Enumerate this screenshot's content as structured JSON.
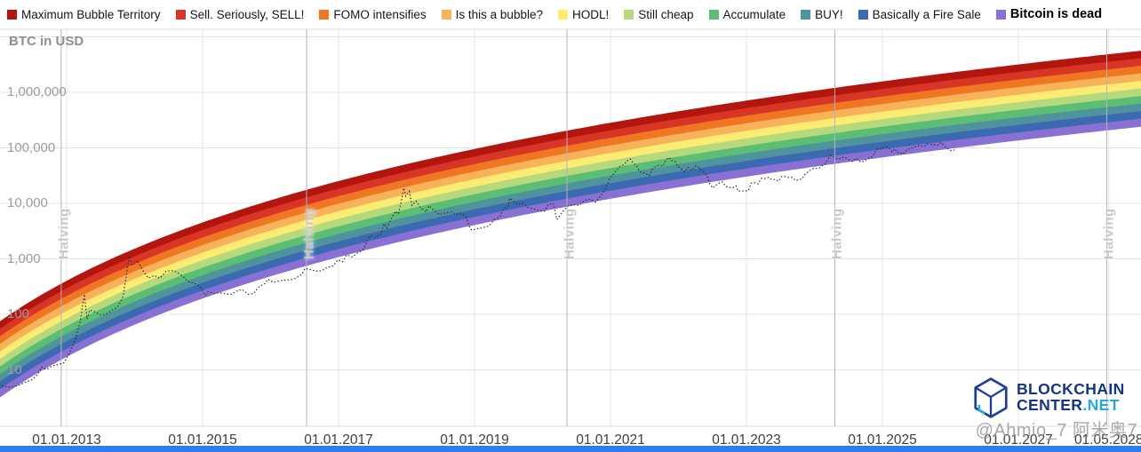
{
  "branding": {
    "word1": "BLOCKCHAIN",
    "word2": "CENTER",
    "word2_suffix": ".NET"
  },
  "watermark": "@Ahmio_7 阿米奥7",
  "chart_data": {
    "type": "line",
    "ylabel": "BTC in USD",
    "y_scale": "log10",
    "grid": true,
    "legend_position": "top",
    "y_ticks": [
      {
        "label": "1,000,000",
        "log10": 6
      },
      {
        "label": "100,000",
        "log10": 5
      },
      {
        "label": "10,000",
        "log10": 4
      },
      {
        "label": "1,000",
        "log10": 3
      },
      {
        "label": "100",
        "log10": 2
      },
      {
        "label": "10",
        "log10": 1
      }
    ],
    "y_grid_logs": [
      1,
      2,
      3,
      4,
      5,
      6,
      7
    ],
    "x_ticks": [
      {
        "label": "01.01.2013",
        "year": 2013
      },
      {
        "label": "01.01.2015",
        "year": 2015
      },
      {
        "label": "01.01.2017",
        "year": 2017
      },
      {
        "label": "01.01.2019",
        "year": 2019
      },
      {
        "label": "01.01.2021",
        "year": 2021
      },
      {
        "label": "01.01.2023",
        "year": 2023
      },
      {
        "label": "01.01.2025",
        "year": 2025
      },
      {
        "label": "01.01.2027",
        "year": 2027
      },
      {
        "label": "01.05.2028",
        "year": 2028.33
      }
    ],
    "halvings": {
      "label": "Halving",
      "years": [
        2012.92,
        2016.53,
        2020.36,
        2024.3,
        2028.3
      ]
    },
    "rainbow": {
      "note": "log10(USD) = a * ln(days since 2009-01-03) + b; 10 stacked bands",
      "a": 2.59,
      "b": -16.95,
      "band_log10_width": 0.136,
      "bands": [
        {
          "label": "Maximum Bubble Territory",
          "color": "#b3150f"
        },
        {
          "label": "Sell. Seriously, SELL!",
          "color": "#d93526"
        },
        {
          "label": "FOMO intensifies",
          "color": "#ef7622"
        },
        {
          "label": "Is this a bubble?",
          "color": "#f7b25a"
        },
        {
          "label": "HODL!",
          "color": "#fdec74"
        },
        {
          "label": "Still cheap",
          "color": "#b6d97e"
        },
        {
          "label": "Accumulate",
          "color": "#5cbd74"
        },
        {
          "label": "BUY!",
          "color": "#4f939c"
        },
        {
          "label": "Basically a Fire Sale",
          "color": "#3b69b2"
        },
        {
          "label": "Bitcoin is dead",
          "color": "#8970d3",
          "emphasis": true
        }
      ]
    },
    "price_series_units": [
      "year",
      "usd"
    ],
    "price_series": [
      [
        2012.0,
        5.2
      ],
      [
        2012.08,
        5.0
      ],
      [
        2012.17,
        4.9
      ],
      [
        2012.25,
        5.1
      ],
      [
        2012.33,
        5.5
      ],
      [
        2012.42,
        6.2
      ],
      [
        2012.5,
        6.7
      ],
      [
        2012.58,
        8.5
      ],
      [
        2012.63,
        11.2
      ],
      [
        2012.7,
        10.2
      ],
      [
        2012.79,
        11.8
      ],
      [
        2012.88,
        12.5
      ],
      [
        2012.96,
        13.4
      ],
      [
        2013.04,
        20
      ],
      [
        2013.12,
        33
      ],
      [
        2013.2,
        75
      ],
      [
        2013.26,
        230
      ],
      [
        2013.3,
        83
      ],
      [
        2013.34,
        120
      ],
      [
        2013.42,
        110
      ],
      [
        2013.5,
        97
      ],
      [
        2013.58,
        102
      ],
      [
        2013.67,
        120
      ],
      [
        2013.75,
        135
      ],
      [
        2013.83,
        210
      ],
      [
        2013.88,
        520
      ],
      [
        2013.92,
        1120
      ],
      [
        2013.96,
        760
      ],
      [
        2014.0,
        810
      ],
      [
        2014.04,
        930
      ],
      [
        2014.12,
        620
      ],
      [
        2014.2,
        450
      ],
      [
        2014.29,
        500
      ],
      [
        2014.37,
        445
      ],
      [
        2014.46,
        590
      ],
      [
        2014.54,
        620
      ],
      [
        2014.62,
        580
      ],
      [
        2014.71,
        480
      ],
      [
        2014.79,
        390
      ],
      [
        2014.88,
        360
      ],
      [
        2014.96,
        320
      ],
      [
        2015.04,
        218
      ],
      [
        2015.08,
        255
      ],
      [
        2015.17,
        240
      ],
      [
        2015.25,
        245
      ],
      [
        2015.33,
        235
      ],
      [
        2015.42,
        230
      ],
      [
        2015.5,
        262
      ],
      [
        2015.58,
        282
      ],
      [
        2015.67,
        230
      ],
      [
        2015.75,
        237
      ],
      [
        2015.83,
        315
      ],
      [
        2015.92,
        362
      ],
      [
        2015.96,
        430
      ],
      [
        2016.04,
        378
      ],
      [
        2016.12,
        398
      ],
      [
        2016.21,
        416
      ],
      [
        2016.29,
        418
      ],
      [
        2016.37,
        448
      ],
      [
        2016.46,
        530
      ],
      [
        2016.51,
        675
      ],
      [
        2016.58,
        640
      ],
      [
        2016.67,
        600
      ],
      [
        2016.75,
        608
      ],
      [
        2016.83,
        700
      ],
      [
        2016.92,
        745
      ],
      [
        2016.99,
        960
      ],
      [
        2017.06,
        890
      ],
      [
        2017.12,
        1180
      ],
      [
        2017.2,
        1080
      ],
      [
        2017.28,
        1280
      ],
      [
        2017.37,
        1500
      ],
      [
        2017.43,
        2300
      ],
      [
        2017.48,
        2600
      ],
      [
        2017.54,
        2400
      ],
      [
        2017.62,
        2750
      ],
      [
        2017.67,
        4300
      ],
      [
        2017.71,
        3600
      ],
      [
        2017.79,
        5700
      ],
      [
        2017.84,
        7200
      ],
      [
        2017.88,
        6400
      ],
      [
        2017.92,
        10500
      ],
      [
        2017.96,
        19000
      ],
      [
        2017.99,
        13500
      ],
      [
        2018.04,
        16500
      ],
      [
        2018.08,
        9200
      ],
      [
        2018.14,
        11000
      ],
      [
        2018.21,
        8300
      ],
      [
        2018.29,
        7000
      ],
      [
        2018.33,
        9100
      ],
      [
        2018.4,
        7500
      ],
      [
        2018.48,
        6300
      ],
      [
        2018.56,
        6600
      ],
      [
        2018.65,
        7000
      ],
      [
        2018.73,
        6350
      ],
      [
        2018.81,
        6500
      ],
      [
        2018.88,
        5600
      ],
      [
        2018.92,
        3900
      ],
      [
        2018.96,
        3300
      ],
      [
        2019.04,
        3500
      ],
      [
        2019.12,
        3650
      ],
      [
        2019.21,
        3900
      ],
      [
        2019.29,
        5100
      ],
      [
        2019.37,
        5600
      ],
      [
        2019.43,
        8000
      ],
      [
        2019.49,
        8600
      ],
      [
        2019.52,
        12400
      ],
      [
        2019.58,
        10800
      ],
      [
        2019.63,
        9600
      ],
      [
        2019.71,
        10200
      ],
      [
        2019.79,
        8400
      ],
      [
        2019.87,
        8000
      ],
      [
        2019.95,
        7300
      ],
      [
        2020.03,
        7300
      ],
      [
        2020.08,
        9400
      ],
      [
        2020.16,
        10100
      ],
      [
        2020.21,
        5100
      ],
      [
        2020.29,
        6900
      ],
      [
        2020.37,
        8900
      ],
      [
        2020.45,
        9500
      ],
      [
        2020.54,
        9200
      ],
      [
        2020.62,
        11300
      ],
      [
        2020.7,
        11800
      ],
      [
        2020.78,
        10500
      ],
      [
        2020.86,
        13800
      ],
      [
        2020.94,
        19200
      ],
      [
        2020.99,
        28900
      ],
      [
        2021.04,
        33500
      ],
      [
        2021.09,
        39600
      ],
      [
        2021.14,
        46500
      ],
      [
        2021.2,
        50000
      ],
      [
        2021.25,
        58800
      ],
      [
        2021.29,
        63200
      ],
      [
        2021.33,
        53500
      ],
      [
        2021.38,
        49000
      ],
      [
        2021.43,
        37000
      ],
      [
        2021.48,
        35800
      ],
      [
        2021.53,
        33600
      ],
      [
        2021.57,
        31600
      ],
      [
        2021.62,
        42200
      ],
      [
        2021.67,
        47100
      ],
      [
        2021.72,
        48800
      ],
      [
        2021.77,
        47200
      ],
      [
        2021.82,
        61300
      ],
      [
        2021.86,
        66900
      ],
      [
        2021.9,
        58700
      ],
      [
        2021.95,
        57200
      ],
      [
        2021.99,
        46300
      ],
      [
        2022.04,
        41500
      ],
      [
        2022.09,
        36900
      ],
      [
        2022.14,
        44400
      ],
      [
        2022.19,
        39400
      ],
      [
        2022.24,
        46800
      ],
      [
        2022.29,
        45500
      ],
      [
        2022.33,
        39700
      ],
      [
        2022.38,
        36000
      ],
      [
        2022.43,
        29800
      ],
      [
        2022.46,
        22500
      ],
      [
        2022.5,
        19000
      ],
      [
        2022.55,
        21200
      ],
      [
        2022.6,
        23300
      ],
      [
        2022.65,
        24400
      ],
      [
        2022.7,
        20100
      ],
      [
        2022.75,
        19400
      ],
      [
        2022.8,
        19100
      ],
      [
        2022.85,
        20500
      ],
      [
        2022.88,
        16500
      ],
      [
        2022.93,
        16800
      ],
      [
        2022.98,
        16600
      ],
      [
        2023.03,
        17200
      ],
      [
        2023.07,
        23100
      ],
      [
        2023.12,
        23500
      ],
      [
        2023.17,
        22400
      ],
      [
        2023.22,
        28300
      ],
      [
        2023.27,
        28000
      ],
      [
        2023.32,
        29300
      ],
      [
        2023.37,
        27000
      ],
      [
        2023.42,
        26900
      ],
      [
        2023.47,
        25100
      ],
      [
        2023.52,
        30500
      ],
      [
        2023.57,
        30300
      ],
      [
        2023.62,
        29200
      ],
      [
        2023.67,
        29200
      ],
      [
        2023.72,
        26000
      ],
      [
        2023.77,
        26600
      ],
      [
        2023.82,
        27700
      ],
      [
        2023.87,
        34500
      ],
      [
        2023.92,
        37700
      ],
      [
        2023.97,
        42300
      ],
      [
        2024.02,
        42600
      ],
      [
        2024.07,
        43100
      ],
      [
        2024.12,
        48200
      ],
      [
        2024.16,
        52000
      ],
      [
        2024.2,
        62500
      ],
      [
        2024.23,
        73100
      ],
      [
        2024.27,
        69400
      ],
      [
        2024.32,
        64000
      ],
      [
        2024.37,
        63800
      ],
      [
        2024.42,
        67500
      ],
      [
        2024.46,
        66200
      ],
      [
        2024.51,
        61000
      ],
      [
        2024.56,
        57000
      ],
      [
        2024.61,
        65000
      ],
      [
        2024.65,
        59400
      ],
      [
        2024.69,
        55000
      ],
      [
        2024.74,
        59000
      ],
      [
        2024.78,
        63200
      ],
      [
        2024.82,
        66600
      ],
      [
        2024.86,
        69000
      ],
      [
        2024.9,
        88700
      ],
      [
        2024.94,
        97500
      ],
      [
        2024.98,
        95800
      ],
      [
        2025.02,
        102100
      ],
      [
        2025.06,
        104800
      ],
      [
        2025.1,
        97700
      ],
      [
        2025.14,
        84400
      ],
      [
        2025.18,
        96100
      ],
      [
        2025.22,
        82600
      ],
      [
        2025.26,
        82500
      ],
      [
        2025.3,
        76300
      ],
      [
        2025.34,
        87500
      ],
      [
        2025.38,
        94200
      ],
      [
        2025.42,
        97000
      ],
      [
        2025.46,
        103700
      ],
      [
        2025.5,
        104600
      ],
      [
        2025.54,
        109600
      ],
      [
        2025.58,
        107200
      ],
      [
        2025.62,
        108300
      ],
      [
        2025.66,
        118000
      ],
      [
        2025.7,
        117500
      ],
      [
        2025.74,
        113300
      ],
      [
        2025.78,
        114700
      ],
      [
        2025.82,
        112400
      ],
      [
        2025.86,
        124400
      ],
      [
        2025.9,
        110100
      ],
      [
        2025.94,
        101000
      ],
      [
        2025.98,
        93400
      ],
      [
        2026.02,
        88000
      ],
      [
        2026.06,
        91500
      ]
    ]
  }
}
